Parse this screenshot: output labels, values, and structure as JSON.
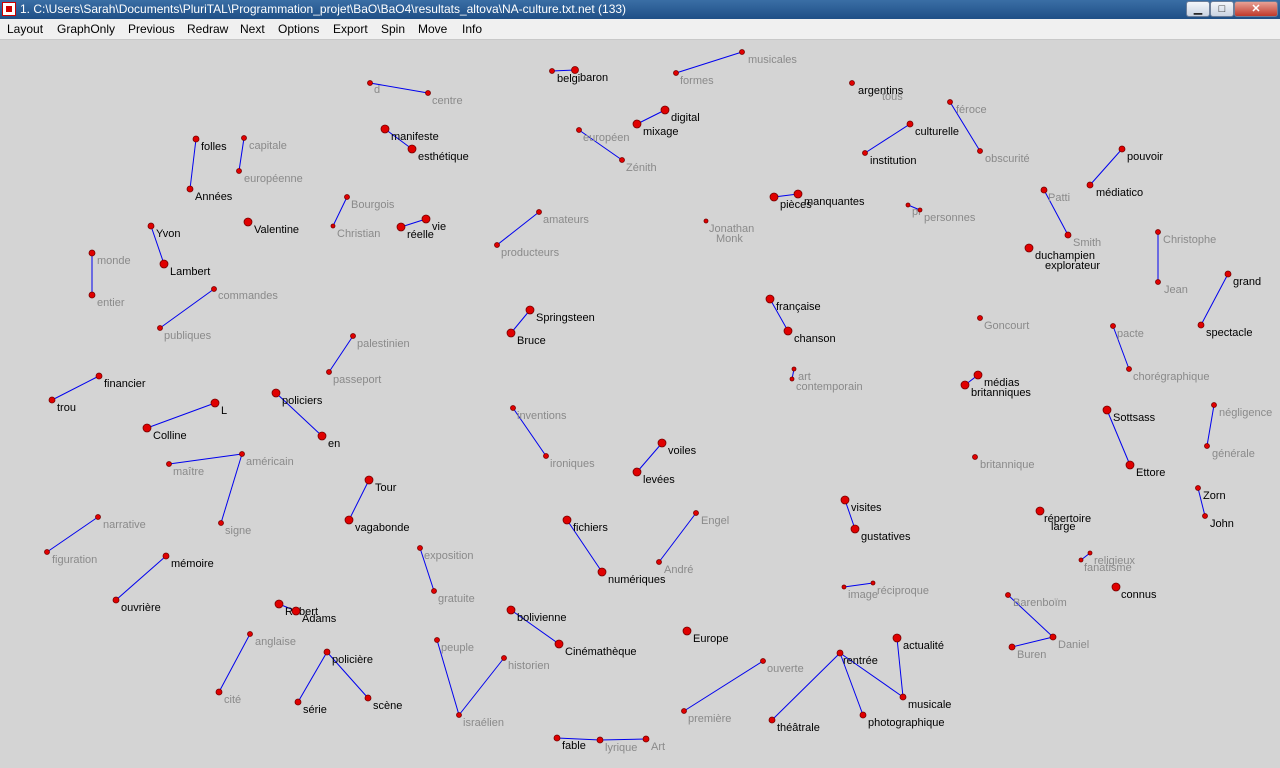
{
  "window": {
    "title": "1. C:\\Users\\Sarah\\Documents\\PluriTAL\\Programmation_projet\\BaO\\BaO4\\resultats_altova\\NA-culture.txt.net (133)",
    "min_glyph": "▁",
    "max_glyph": "□",
    "close_glyph": "✕"
  },
  "menu": [
    "Layout",
    "GraphOnly",
    "Previous",
    "Redraw",
    "Next",
    "Options",
    "Export",
    "Spin",
    "Move",
    "Info"
  ],
  "colors": {
    "node": "#e00000",
    "edge": "#0000ee",
    "label_dark": "#000000",
    "label_grey": "#8a8a8a",
    "background": "#d4d4d4"
  },
  "graph": {
    "words": {
      "d": "d",
      "centre": "centre",
      "belgi": "belgi",
      "baron": "baron",
      "formes": "formes",
      "musicales": "musicales",
      "argentins": "argentins",
      "tous": "tous",
      "feroce": "féroce",
      "obscurite": "obscurité",
      "culturelle": "culturelle",
      "institution": "institution",
      "folles": "folles",
      "annees": "Années",
      "capitale": "capitale",
      "europeenne": "européenne",
      "manifeste": "manifeste",
      "esthetique": "esthétique",
      "digital": "digital",
      "mixage": "mixage",
      "europeen": "européen",
      "zenith": "Zénith",
      "pouvoir": "pouvoir",
      "mediatico": "médiatico",
      "patti": "Patti",
      "smith": "Smith",
      "yvon": "Yvon",
      "lambert": "Lambert",
      "valentine": "Valentine",
      "bourgois": "Bourgois",
      "christian": "Christian",
      "vie": "vie",
      "reelle": "réelle",
      "amateurs": "amateurs",
      "producteurs": "producteurs",
      "jonathan": "Jonathan",
      "monk": "Monk",
      "pieces": "pièces",
      "manquantes": "manquantes",
      "pr": "pr",
      "personnes": "personnes",
      "duchampien": "duchampien",
      "explorateur": "explorateur",
      "christophe": "Christophe",
      "jean": "Jean",
      "monde": "monde",
      "entier": "entier",
      "commandes": "commandes",
      "publiques": "publiques",
      "springsteen": "Springsteen",
      "bruce": "Bruce",
      "francaise": "française",
      "chanson": "chanson",
      "goncourt": "Goncourt",
      "grand": "grand",
      "spectacle": "spectacle",
      "palestinien": "palestinien",
      "passeport": "passeport",
      "pacte": "pacte",
      "choregraphique": "chorégraphique",
      "art": "art",
      "contemporain": "contemporain",
      "medias": "médias",
      "britanniques": "britanniques",
      "financier": "financier",
      "trou": "trou",
      "policiers": "policiers",
      "en": "en",
      "l": "L",
      "colline": "Colline",
      "inventions": "inventions",
      "ironiques": "ironiques",
      "negligence": "négligence",
      "generale": "générale",
      "sottsass": "Sottsass",
      "ettore": "Ettore",
      "voiles": "voiles",
      "levees": "levées",
      "maitre": "maître",
      "americain": "américain",
      "signe": "signe",
      "britannique": "britannique",
      "tour": "Tour",
      "vagabonde": "vagabonde",
      "zorn": "Zorn",
      "john": "John",
      "visites": "visites",
      "gustatives": "gustatives",
      "repertoire": "répertoire",
      "large": "large",
      "narrative": "narrative",
      "figuration": "figuration",
      "fichiers": "fichiers",
      "numeriques": "numériques",
      "engel": "Engel",
      "andre": "André",
      "exposition": "exposition",
      "gratuite": "gratuite",
      "memoire": "mémoire",
      "ouvriere": "ouvrière",
      "religieux": "religieux",
      "fanatisme": "fanatisme",
      "connus": "connus",
      "robert": "Robert",
      "adams": "Adams",
      "bolivienne": "bolivienne",
      "cinematheque": "Cinémathèque",
      "image": "image",
      "reciproque": "réciproque",
      "barenboim": "Barenboïm",
      "daniel": "Daniel",
      "buren": "Buren",
      "anglaise": "anglaise",
      "cite": "cité",
      "europe": "Europe",
      "peuple": "peuple",
      "historien": "historien",
      "israelien": "israélien",
      "policiere": "policière",
      "serie": "série",
      "scene": "scène",
      "ouverte": "ouverte",
      "premiere": "première",
      "actualite": "actualité",
      "rentree": "rentrée",
      "musicale": "musicale",
      "theatrale": "théâtrale",
      "photographique": "photographique",
      "fable": "fable",
      "lyrique": "lyrique",
      "art_cap": "Art"
    }
  }
}
